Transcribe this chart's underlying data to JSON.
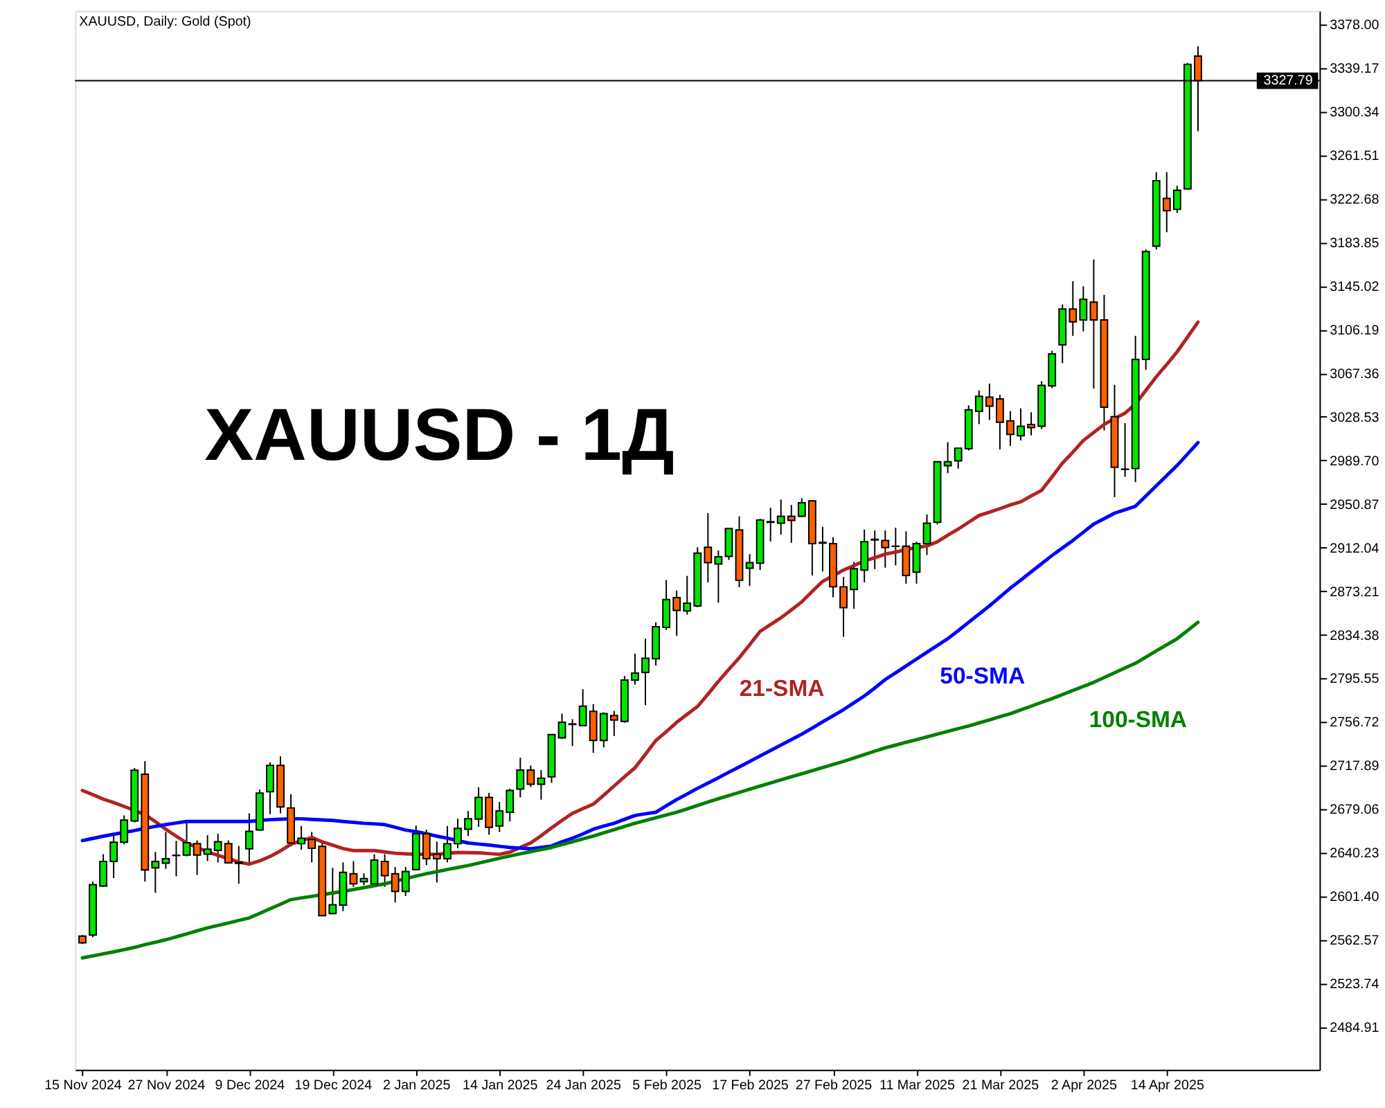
{
  "chart_data": {
    "type": "candlestick",
    "title": "XAUUSD, Daily: Gold (Spot)",
    "annotations": [
      "XAUUSD - 1Д"
    ],
    "categories": [
      "15 Nov 2024",
      null,
      null,
      null,
      null,
      null,
      null,
      null,
      "27 Nov 2024",
      null,
      null,
      null,
      null,
      null,
      null,
      null,
      "9 Dec 2024",
      null,
      null,
      null,
      null,
      null,
      null,
      null,
      "19 Dec 2024",
      null,
      null,
      null,
      null,
      null,
      null,
      null,
      "2 Jan 2025",
      null,
      null,
      null,
      null,
      null,
      null,
      null,
      "14 Jan 2025",
      null,
      null,
      null,
      null,
      null,
      null,
      null,
      "24 Jan 2025",
      null,
      null,
      null,
      null,
      null,
      null,
      null,
      "5 Feb 2025",
      null,
      null,
      null,
      null,
      null,
      null,
      null,
      "17 Feb 2025",
      null,
      null,
      null,
      null,
      null,
      null,
      null,
      "27 Feb 2025",
      null,
      null,
      null,
      null,
      null,
      null,
      null,
      "11 Mar 2025",
      null,
      null,
      null,
      null,
      null,
      null,
      null,
      "21 Mar 2025",
      null,
      null,
      null,
      null,
      null,
      null,
      null,
      "2 Apr 2025",
      null,
      null,
      null,
      null,
      null,
      null,
      null,
      "14 Apr 2025",
      null,
      null,
      null
    ],
    "ohlc": [
      [
        2566.1,
        2567,
        2559,
        2560
      ],
      [
        2566.9,
        2614.6,
        2565,
        2611.8
      ],
      [
        2610.6,
        2639.0,
        2610,
        2632.5
      ],
      [
        2632.5,
        2655.3,
        2617.7,
        2649.6
      ],
      [
        2649.6,
        2673.5,
        2647.9,
        2669.4
      ],
      [
        2668.5,
        2715.8,
        2667.3,
        2713.8
      ],
      [
        2710.2,
        2721.8,
        2614.6,
        2625.0
      ],
      [
        2626.8,
        2641.0,
        2604.6,
        2632.5
      ],
      [
        2631,
        2658.8,
        2626,
        2635
      ],
      [
        2637.8,
        2650.8,
        2619.3,
        2638.0
      ],
      [
        2638.2,
        2669.4,
        2637,
        2649.2
      ],
      [
        2648.4,
        2651.3,
        2620.5,
        2638.2
      ],
      [
        2639,
        2655.9,
        2632.9,
        2643.5
      ],
      [
        2642.3,
        2657.2,
        2631.7,
        2650.1
      ],
      [
        2648.4,
        2651.3,
        2630.8,
        2631.3
      ],
      [
        2630.8,
        2646.3,
        2612.6,
        2631.5
      ],
      [
        2643.8,
        2675.4,
        2630.8,
        2659.3
      ],
      [
        2660.5,
        2696.5,
        2660,
        2693.4
      ],
      [
        2694.6,
        2720.8,
        2674.6,
        2718.0
      ],
      [
        2718.0,
        2726.1,
        2675.4,
        2681.1
      ],
      [
        2680.2,
        2692.4,
        2645.9,
        2649.0
      ],
      [
        2648.3,
        2664.1,
        2643.0,
        2653.2
      ],
      [
        2652,
        2658.8,
        2631.7,
        2644.2
      ],
      [
        2645.9,
        2651.1,
        2583.5,
        2584.2
      ],
      [
        2586.1,
        2626.8,
        2585.5,
        2594.0
      ],
      [
        2593.6,
        2631.7,
        2588.3,
        2622.8
      ],
      [
        2621.6,
        2632.9,
        2609.9,
        2612.6
      ],
      [
        2614.4,
        2622.0,
        2611.4,
        2617.3
      ],
      [
        2612.6,
        2638.9,
        2611.4,
        2633.7
      ],
      [
        2632.5,
        2638.9,
        2609.9,
        2619.8
      ],
      [
        2621.6,
        2627.6,
        2596.0,
        2605.8
      ],
      [
        2605.8,
        2627.6,
        2601.7,
        2623.5
      ],
      [
        2625.2,
        2664.5,
        2624.5,
        2657.2
      ],
      [
        2657.2,
        2660.8,
        2629.2,
        2635.0
      ],
      [
        2639.0,
        2650.2,
        2613.8,
        2635.0
      ],
      [
        2635.0,
        2664.1,
        2631.7,
        2648.3
      ],
      [
        2648.3,
        2670.6,
        2644.2,
        2662.0
      ],
      [
        2661.2,
        2677.5,
        2655.1,
        2670.6
      ],
      [
        2670.2,
        2698.5,
        2663.3,
        2689.6
      ],
      [
        2689.6,
        2693.6,
        2656.3,
        2662.9
      ],
      [
        2664.1,
        2685.5,
        2658.8,
        2677.5
      ],
      [
        2676.2,
        2697.3,
        2668.1,
        2695.7
      ],
      [
        2696.9,
        2724.9,
        2689.6,
        2713.9
      ],
      [
        2713.9,
        2717.9,
        2698.8,
        2701.3
      ],
      [
        2701.3,
        2713.9,
        2687.5,
        2706.7
      ],
      [
        2707.9,
        2746.0,
        2702.5,
        2745.5
      ],
      [
        2742.6,
        2764.1,
        2741.9,
        2756.4
      ],
      [
        2754.5,
        2759.2,
        2735.3,
        2755.0
      ],
      [
        2753.5,
        2785.9,
        2753.0,
        2770.8
      ],
      [
        2766.2,
        2772.6,
        2729.2,
        2740.2
      ],
      [
        2740.2,
        2765.3,
        2734.1,
        2764.1
      ],
      [
        2762.5,
        2766.5,
        2744.2,
        2758.4
      ],
      [
        2757.2,
        2797.7,
        2756.0,
        2794.1
      ],
      [
        2794.1,
        2817.5,
        2790.0,
        2800.2
      ],
      [
        2800.9,
        2830.9,
        2771.7,
        2813.5
      ],
      [
        2813.1,
        2845.5,
        2807.0,
        2841.5
      ],
      [
        2841.0,
        2883.2,
        2838.6,
        2865.8
      ],
      [
        2867.4,
        2873.8,
        2833.4,
        2856.1
      ],
      [
        2855.6,
        2886.8,
        2852.4,
        2862.5
      ],
      [
        2860.1,
        2912.3,
        2858.9,
        2907.1
      ],
      [
        2912.3,
        2942.7,
        2881.1,
        2898.6
      ],
      [
        2897.4,
        2909.5,
        2862.9,
        2903.8
      ],
      [
        2904.2,
        2929.3,
        2901.0,
        2929.0
      ],
      [
        2927.7,
        2939.9,
        2876.7,
        2882.8
      ],
      [
        2893.7,
        2906.2,
        2877.9,
        2898.6
      ],
      [
        2898.1,
        2937.8,
        2892.0,
        2936.6
      ],
      [
        2934.5,
        2947.5,
        2917.5,
        2935.1
      ],
      [
        2933.8,
        2954.8,
        2923.6,
        2939.9
      ],
      [
        2939.9,
        2950.0,
        2916.3,
        2936.2
      ],
      [
        2939.9,
        2956.0,
        2939.0,
        2952.0
      ],
      [
        2953.6,
        2954.0,
        2887.2,
        2915.6
      ],
      [
        2916.6,
        2930.5,
        2890.8,
        2916.0
      ],
      [
        2915.6,
        2921.2,
        2867.7,
        2877.1
      ],
      [
        2877.1,
        2885.9,
        2832.5,
        2858.5
      ],
      [
        2874.7,
        2899.3,
        2857.6,
        2893.2
      ],
      [
        2892.0,
        2928.1,
        2881.1,
        2917.2
      ],
      [
        2918.8,
        2927.3,
        2892.9,
        2919.4
      ],
      [
        2918.4,
        2927.3,
        2894.1,
        2912.0
      ],
      [
        2913.3,
        2929.7,
        2896.2,
        2913.2
      ],
      [
        2913.2,
        2926.5,
        2879.9,
        2887.2
      ],
      [
        2890.1,
        2917.2,
        2879.9,
        2915.6
      ],
      [
        2915.6,
        2941.5,
        2905.4,
        2933.8
      ],
      [
        2934.5,
        2989.0,
        2932.6,
        2988.5
      ],
      [
        2985.0,
        3005.9,
        2978.3,
        2988.5
      ],
      [
        2989.2,
        3000.8,
        2982.4,
        3000.6
      ],
      [
        3000.1,
        3038.7,
        2998.6,
        3034.7
      ],
      [
        3033.4,
        3052.0,
        3022.0,
        3046.8
      ],
      [
        3046.0,
        3058.1,
        3025.7,
        3038.0
      ],
      [
        3044.4,
        3048.0,
        2999.4,
        3023.7
      ],
      [
        3024.9,
        3033.5,
        3002.6,
        3012.8
      ],
      [
        3011.6,
        3035.9,
        3007.4,
        3020.1
      ],
      [
        3021.7,
        3032.6,
        3012.0,
        3018.9
      ],
      [
        3020.1,
        3060.2,
        3017.6,
        3056.5
      ],
      [
        3056.0,
        3087.3,
        3054.1,
        3084.5
      ],
      [
        3092.5,
        3128.6,
        3076.3,
        3124.5
      ],
      [
        3124.5,
        3149.2,
        3100.6,
        3113.1
      ],
      [
        3114.8,
        3144.7,
        3104.6,
        3133.1
      ],
      [
        3130.6,
        3168.6,
        3053.6,
        3114.8
      ],
      [
        3114.8,
        3137.1,
        3016.4,
        3037.1
      ],
      [
        3028.6,
        3056.9,
        2956.9,
        2983.6
      ],
      [
        2981.9,
        3022.9,
        2975.1,
        2981.7
      ],
      [
        2982.4,
        3100.6,
        2970.3,
        3079.6
      ],
      [
        3079.6,
        3177.5,
        3070.3,
        3175.6
      ],
      [
        3180.4,
        3246.4,
        3177.5,
        3238.8
      ],
      [
        3223.0,
        3246.4,
        3192.9,
        3212.0
      ],
      [
        3213.2,
        3234.2,
        3210.0,
        3230.2
      ],
      [
        3231.5,
        3343.6,
        3231.0,
        3342.4
      ],
      [
        3349.7,
        3358.5,
        3282.9,
        3327.79
      ]
    ],
    "colors": [
      "#ff6000",
      "#00e600",
      "#00e600",
      "#00e600",
      "#00e600",
      "#00e600",
      "#ff6000",
      "#00e600",
      "#00e600",
      "#00e600",
      "#00e600",
      "#ff6000",
      "#00e600",
      "#00e600",
      "#ff6000",
      "#00e600",
      "#00e600",
      "#00e600",
      "#00e600",
      "#ff6000",
      "#ff6000",
      "#00e600",
      "#ff6000",
      "#ff6000",
      "#00e600",
      "#00e600",
      "#ff6000",
      "#00e600",
      "#00e600",
      "#ff6000",
      "#ff6000",
      "#00e600",
      "#00e600",
      "#ff6000",
      "#ff6000",
      "#00e600",
      "#00e600",
      "#00e600",
      "#00e600",
      "#ff6000",
      "#00e600",
      "#00e600",
      "#00e600",
      "#ff6000",
      "#00e600",
      "#00e600",
      "#00e600",
      "#00e600",
      "#00e600",
      "#ff6000",
      "#00e600",
      "#ff6000",
      "#00e600",
      "#00e600",
      "#00e600",
      "#00e600",
      "#00e600",
      "#ff6000",
      "#00e600",
      "#00e600",
      "#ff6000",
      "#00e600",
      "#00e600",
      "#ff6000",
      "#00e600",
      "#00e600",
      "#00e600",
      "#00e600",
      "#ff6000",
      "#00e600",
      "#ff6000",
      "#ff6000",
      "#ff6000",
      "#ff6000",
      "#00e600",
      "#00e600",
      "#00e600",
      "#ff6000",
      "#ff6000",
      "#ff6000",
      "#00e600",
      "#00e600",
      "#00e600",
      "#00e600",
      "#00e600",
      "#00e600",
      "#00e600",
      "#ff6000",
      "#ff6000",
      "#ff6000",
      "#00e600",
      "#ff6000",
      "#00e600",
      "#00e600",
      "#00e600",
      "#ff6000",
      "#00e600",
      "#ff6000",
      "#ff6000",
      "#ff6000",
      "#ff6000",
      "#00e600",
      "#00e600",
      "#00e600",
      "#ff6000",
      "#00e600",
      "#00e600",
      "#ff6000"
    ],
    "series": [
      {
        "name": "21-SMA",
        "type": "line",
        "color": "#b22222",
        "values": [
          2695.7,
          2692,
          2688,
          2685,
          2681.5,
          2678,
          2674.2,
          2668,
          2661.2,
          2655,
          2649.0,
          2645,
          2641.0,
          2638,
          2635.0,
          2632,
          2630.1,
          2633,
          2636.9,
          2642,
          2647.8,
          2651,
          2653.9,
          2650,
          2647.1,
          2644,
          2642.2,
          2642.2,
          2642.2,
          2641,
          2639.8,
          2639.3,
          2638.9,
          2638.9,
          2638.9,
          2639.7,
          2640.5,
          2640.3,
          2640.2,
          2639.5,
          2638.9,
          2640.8,
          2645,
          2649.0,
          2655.5,
          2662.4,
          2669,
          2675.4,
          2679.5,
          2683.5,
          2691.5,
          2699.7,
          2708,
          2715.9,
          2728,
          2740.2,
          2748,
          2756.4,
          2763.5,
          2770.5,
          2781.5,
          2792.9,
          2803.5,
          2813.9,
          2825.5,
          2837.4,
          2843.5,
          2849.5,
          2856.5,
          2863.7,
          2873,
          2881.9,
          2887,
          2892.0,
          2896,
          2900.2,
          2903,
          2906.2,
          2908,
          2910.2,
          2912,
          2913.5,
          2917.2,
          2923,
          2928.5,
          2934.5,
          2940.6,
          2943.5,
          2946.7,
          2950,
          2952.8,
          2958,
          2963.0,
          2975,
          2987.3,
          2997,
          3007.4,
          3014.5,
          3021.7,
          3027,
          3031.7,
          3039.9,
          3052,
          3064.2,
          3075,
          3086.4,
          3099.5,
          3112.8
        ]
      },
      {
        "name": "50-SMA",
        "type": "line",
        "color": "#0000ff",
        "values": [
          2651.1,
          2653,
          2655,
          2656.7,
          2658.4,
          2660,
          2662,
          2663.7,
          2665.3,
          2666.8,
          2668.1,
          2668.1,
          2668.1,
          2668.1,
          2668.1,
          2668.1,
          2668.1,
          2669,
          2669.7,
          2670.1,
          2670.5,
          2670.5,
          2670,
          2669.5,
          2669,
          2668.1,
          2667.3,
          2666.5,
          2666,
          2665.3,
          2663,
          2660.5,
          2659,
          2657.2,
          2655,
          2653.2,
          2651,
          2649.0,
          2648,
          2647.1,
          2646,
          2645.0,
          2644.4,
          2643.8,
          2645,
          2646.3,
          2650,
          2653.2,
          2657,
          2661.2,
          2664,
          2666.5,
          2670,
          2673.4,
          2675,
          2676.3,
          2682,
          2687.6,
          2692.5,
          2697.6,
          2702.3,
          2707.0,
          2712,
          2716.7,
          2721.5,
          2726.5,
          2731.3,
          2736.2,
          2741,
          2745.9,
          2751.3,
          2756.8,
          2762.2,
          2767.7,
          2773.8,
          2779.9,
          2787,
          2794.5,
          2800.5,
          2806.6,
          2812.7,
          2818.8,
          2824.8,
          2830.9,
          2838,
          2845.5,
          2852.8,
          2860.1,
          2868,
          2875.9,
          2883,
          2890.4,
          2897.7,
          2905.0,
          2911.7,
          2918.4,
          2925.7,
          2933.0,
          2937.8,
          2942.7,
          2945.7,
          2948.8,
          2957.9,
          2967.0,
          2976.1,
          2985.2,
          2995.3,
          3005.5
        ]
      },
      {
        "name": "100-SMA",
        "type": "line",
        "color": "#008000",
        "values": [
          2546.6,
          2548.4,
          2550.2,
          2552,
          2553.9,
          2556,
          2558.4,
          2560.6,
          2562.8,
          2565.4,
          2568,
          2570.7,
          2573.3,
          2575.5,
          2577.7,
          2580,
          2582.2,
          2586.3,
          2590.4,
          2594.4,
          2598.5,
          2600,
          2601.4,
          2602.9,
          2604.4,
          2605.8,
          2607.5,
          2609.2,
          2610.9,
          2612.6,
          2614.9,
          2617.1,
          2619.4,
          2621.6,
          2623.4,
          2625.3,
          2627.1,
          2628.9,
          2631,
          2633.2,
          2635.3,
          2637.4,
          2639.3,
          2641.2,
          2643.1,
          2645.0,
          2647.5,
          2650,
          2652.6,
          2655.1,
          2658,
          2660.8,
          2663.7,
          2666.5,
          2669,
          2671.4,
          2673.9,
          2676.3,
          2679.3,
          2682.4,
          2685.4,
          2688.4,
          2691.2,
          2694,
          2696.9,
          2699.7,
          2702.4,
          2705.2,
          2707.9,
          2710.6,
          2713.4,
          2716.1,
          2718.9,
          2721.6,
          2724.6,
          2727.7,
          2730.7,
          2733.7,
          2736.1,
          2738.6,
          2741,
          2743.4,
          2745.9,
          2748.3,
          2750.8,
          2753.2,
          2755.9,
          2758.6,
          2761.4,
          2764.1,
          2767.5,
          2770.8,
          2774.2,
          2777.5,
          2781.1,
          2784.8,
          2788.4,
          2792.0,
          2796.3,
          2800.5,
          2804.8,
          2809.0,
          2814.5,
          2820,
          2825.4,
          2830.9,
          2838.2,
          2845.5
        ]
      }
    ],
    "ylim": [
      2447,
      3390
    ],
    "yticks": [
      {
        "value": 3378,
        "label": "3378.00"
      },
      3339.17,
      3300.34,
      3261.51,
      3222.68,
      3183.85,
      3145.02,
      3106.19,
      3067.36,
      3028.53,
      {
        "value": 2989.7,
        "label": "2989.70"
      },
      2950.87,
      2912.04,
      2873.21,
      2834.38,
      2795.55,
      2756.72,
      2717.89,
      2679.06,
      2640.23,
      {
        "value": 2601.4,
        "label": "2601.40"
      },
      2562.57,
      2523.74,
      2484.91
    ],
    "ref_lines": [
      {
        "axis": "y",
        "value": 3327.79,
        "label": "3327.79",
        "color": "#000000"
      }
    ]
  }
}
